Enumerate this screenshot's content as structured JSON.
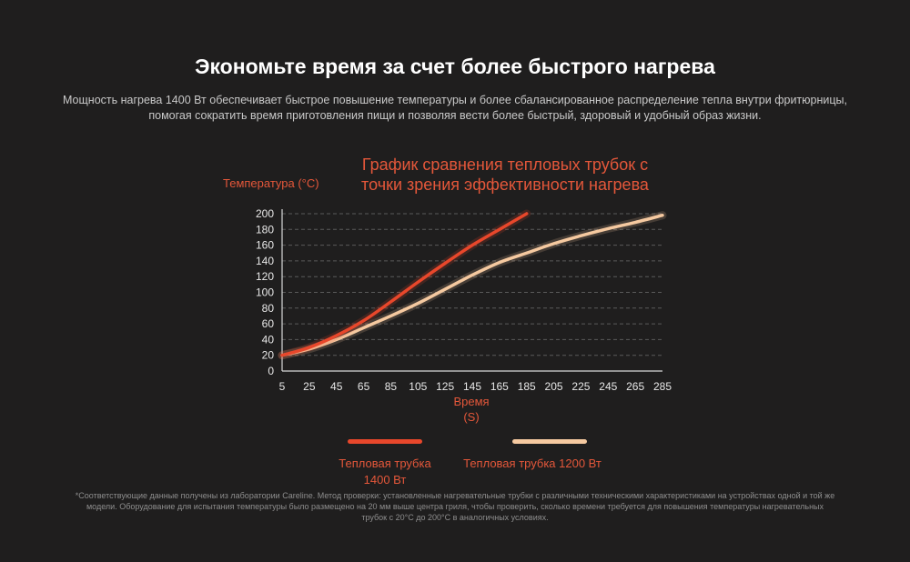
{
  "header": {
    "title": "Экономьте время за счет более быстрого нагрева",
    "subtitle": "Мощность нагрева 1400 Вт обеспечивает быстрое повышение температуры и более сбалансированное распределение тепла внутри фритюрницы, помогая сократить время приготовления пищи и позволяя вести более быстрый, здоровый и удобный образ жизни."
  },
  "chart_data": {
    "type": "line",
    "title": "График сравнения тепловых трубок с точки зрения эффективности нагрева",
    "ylabel": "Температура (°C)",
    "xlabel_line1": "Время",
    "xlabel_line2": "(S)",
    "x_ticks": [
      "5",
      "25",
      "45",
      "65",
      "85",
      "105",
      "125",
      "145",
      "165",
      "185",
      "205",
      "225",
      "245",
      "265",
      "285"
    ],
    "y_ticks": [
      "0",
      "20",
      "40",
      "60",
      "80",
      "100",
      "120",
      "140",
      "160",
      "180",
      "200"
    ],
    "xlim": [
      5,
      285
    ],
    "ylim": [
      0,
      200
    ],
    "grid": "horizontal dashed",
    "legend_position": "bottom",
    "series": [
      {
        "name": "Тепловая трубка 1400 Вт",
        "name_lines": [
          "Тепловая трубка",
          "1400 Вт"
        ],
        "color": "#e8472b",
        "x": [
          5,
          25,
          45,
          65,
          85,
          105,
          125,
          145,
          165,
          185
        ],
        "y": [
          20,
          30,
          45,
          64,
          88,
          113,
          137,
          160,
          180,
          200
        ]
      },
      {
        "name": "Тепловая трубка 1200 Вт",
        "name_lines": [
          "Тепловая трубка 1200 Вт"
        ],
        "color": "#f5c9a0",
        "x": [
          5,
          25,
          45,
          65,
          85,
          105,
          125,
          145,
          165,
          185,
          205,
          225,
          245,
          265,
          285
        ],
        "y": [
          20,
          28,
          40,
          55,
          70,
          86,
          104,
          122,
          138,
          150,
          162,
          172,
          181,
          189,
          198
        ]
      }
    ]
  },
  "footnote": "*Соответствующие данные получены из лаборатории Careline. Метод проверки: установленные нагревательные трубки с различными техническими характеристиками на устройствах одной и той же модели. Оборудование для испытания температуры было размещено на 20 мм выше центра гриля, чтобы проверить, сколько времени требуется для повышения температуры нагревательных трубок с 20°C до 200°C в аналогичных условиях."
}
